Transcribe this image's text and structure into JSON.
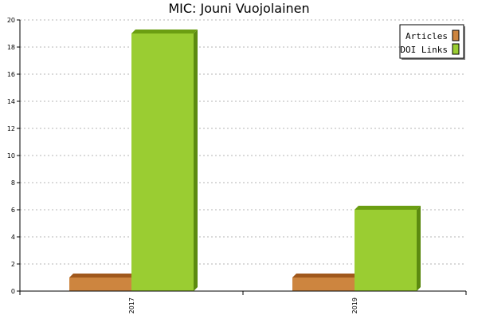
{
  "chart_data": {
    "type": "bar",
    "title": "MIC: Jouni Vuojolainen",
    "xlabel": "",
    "ylabel": "",
    "categories": [
      "2017",
      "2019"
    ],
    "ylim": [
      0,
      20
    ],
    "yticks": [
      0,
      2,
      4,
      6,
      8,
      10,
      12,
      14,
      16,
      18,
      20
    ],
    "grid": true,
    "legend_position": "top-right",
    "series": [
      {
        "name": "Articles",
        "values": [
          1,
          1
        ],
        "color": "#cd853f",
        "side_color": "#8b4a10",
        "top_color": "#a0581c"
      },
      {
        "name": "DOI Links",
        "values": [
          19,
          6
        ],
        "color": "#9acd32",
        "side_color": "#5c8a10",
        "top_color": "#6b9e12"
      }
    ]
  }
}
